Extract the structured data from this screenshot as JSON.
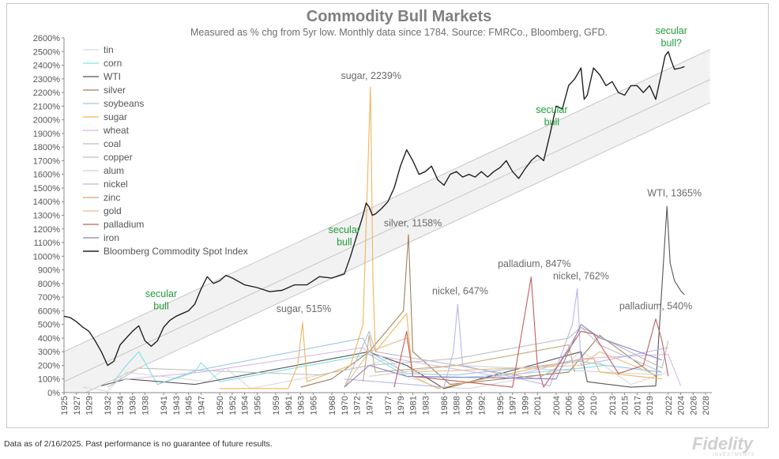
{
  "chart_data": {
    "type": "line",
    "title": "Commodity Bull Markets",
    "subtitle": "Measured as % chg from 5yr low.  Monthly data since 1784.  Source: FMRCo., Bloomberg, GFD.",
    "ylim": [
      0,
      2600
    ],
    "xlim": [
      1925,
      2029
    ],
    "y_ticks": [
      "0%",
      "100%",
      "200%",
      "300%",
      "400%",
      "500%",
      "600%",
      "700%",
      "800%",
      "900%",
      "1000%",
      "1100%",
      "1200%",
      "1300%",
      "1400%",
      "1500%",
      "1600%",
      "1700%",
      "1800%",
      "1900%",
      "2000%",
      "2100%",
      "2200%",
      "2300%",
      "2400%",
      "2500%",
      "2600%"
    ],
    "x_ticks": [
      "1925",
      "1927",
      "1929",
      "1932",
      "1934",
      "1936",
      "1938",
      "1941",
      "1943",
      "1945",
      "1947",
      "1950",
      "1952",
      "1954",
      "1956",
      "1959",
      "1961",
      "1963",
      "1965",
      "1968",
      "1970",
      "1972",
      "1974",
      "1977",
      "1979",
      "1981",
      "1983",
      "1986",
      "1988",
      "1990",
      "1992",
      "1995",
      "1997",
      "1999",
      "2001",
      "2004",
      "2006",
      "2008",
      "2010",
      "2013",
      "2015",
      "2017",
      "2019",
      "2022",
      "2024",
      "2026",
      "2028"
    ],
    "legend_position": "top-left",
    "grid": false,
    "series": [
      {
        "name": "tin",
        "color": "#d9d9d9",
        "x": [
          1928,
          1932,
          1935,
          1948,
          1951,
          1955,
          1974,
          1977,
          1980,
          1985,
          1990,
          2004,
          2008,
          2011,
          2016,
          2022
        ],
        "values": [
          40,
          10,
          150,
          80,
          180,
          30,
          200,
          250,
          120,
          40,
          30,
          150,
          300,
          220,
          60,
          150
        ]
      },
      {
        "name": "corn",
        "color": "#7ee0e8",
        "x": [
          1933,
          1935,
          1937,
          1940,
          1946,
          1947,
          1950,
          1974,
          1980,
          1988,
          1996,
          2008,
          2012,
          2021
        ],
        "values": [
          80,
          200,
          300,
          60,
          150,
          220,
          80,
          280,
          120,
          110,
          130,
          180,
          200,
          150
        ]
      },
      {
        "name": "WTI",
        "color": "#555555",
        "x": [
          1931,
          1935,
          1946,
          1974,
          1975,
          1980,
          1986,
          2000,
          2008,
          2009,
          2016,
          2020,
          2021.8,
          2022.3,
          2023,
          2024.1,
          2024.6
        ],
        "values": [
          50,
          100,
          60,
          300,
          280,
          200,
          30,
          200,
          300,
          80,
          40,
          50,
          1365,
          950,
          820,
          740,
          720
        ]
      },
      {
        "name": "silver",
        "color": "#a08060",
        "x": [
          1963,
          1968,
          1974,
          1979.5,
          1980.3,
          1981,
          1987,
          2006,
          2011,
          2020
        ],
        "values": [
          40,
          100,
          300,
          600,
          1158,
          300,
          60,
          150,
          420,
          120
        ]
      },
      {
        "name": "soybeans",
        "color": "#9cc7e6",
        "x": [
          1940,
          1946,
          1973,
          1974,
          1980,
          1988,
          2008,
          2012,
          2021
        ],
        "values": [
          60,
          160,
          400,
          300,
          140,
          130,
          230,
          200,
          150
        ]
      },
      {
        "name": "sugar",
        "color": "#f2b45c",
        "x": [
          1950,
          1961,
          1962.5,
          1963.3,
          1964,
          1971,
          1973,
          1974.2,
          1974.6,
          1975,
          1980,
          1981,
          1985,
          2006,
          2010,
          2011,
          2021
        ],
        "values": [
          30,
          30,
          200,
          515,
          80,
          200,
          500,
          2239,
          800,
          300,
          580,
          120,
          30,
          230,
          250,
          150,
          100
        ]
      },
      {
        "name": "wheat",
        "color": "#d8b8e8",
        "x": [
          1933,
          1947,
          1973,
          1974,
          1996,
          2008,
          2022,
          2024
        ],
        "values": [
          90,
          150,
          330,
          280,
          110,
          250,
          280,
          50
        ]
      },
      {
        "name": "coal",
        "color": "#bcbcbc",
        "x": [
          1970,
          1974,
          1975,
          2001,
          2004,
          2008,
          2021,
          2022
        ],
        "values": [
          40,
          450,
          300,
          100,
          180,
          480,
          180,
          380
        ]
      },
      {
        "name": "copper",
        "color": "#c0c0c0",
        "x": [
          1932,
          1937,
          1966,
          1974,
          1988,
          2006,
          2008,
          2011,
          2021
        ],
        "values": [
          40,
          180,
          130,
          200,
          250,
          400,
          480,
          350,
          150
        ]
      },
      {
        "name": "alum",
        "color": "#d0d0d0",
        "x": [
          1974,
          1988,
          2008,
          2021
        ],
        "values": [
          120,
          200,
          160,
          130
        ]
      },
      {
        "name": "nickel",
        "color": "#b7b7ea",
        "x": [
          1970,
          1986,
          1987.5,
          1988.2,
          1989,
          2003,
          2006.6,
          2007.4,
          2008,
          2022
        ],
        "values": [
          100,
          40,
          300,
          647,
          200,
          50,
          500,
          762,
          200,
          330
        ]
      },
      {
        "name": "zinc",
        "color": "#c9a77a",
        "x": [
          1973,
          1974,
          1975,
          1988,
          2006,
          2007
        ],
        "values": [
          80,
          420,
          150,
          200,
          350,
          150
        ]
      },
      {
        "name": "gold",
        "color": "#e8bd8c",
        "x": [
          1970,
          1974,
          1980,
          1981,
          2008,
          2011,
          2020
        ],
        "values": [
          40,
          300,
          400,
          150,
          200,
          300,
          130
        ]
      },
      {
        "name": "palladium",
        "color": "#c06060",
        "x": [
          1978,
          1980,
          1981,
          1997,
          2000,
          2001,
          2002,
          2008,
          2010,
          2014,
          2018,
          2020,
          2021,
          2022
        ],
        "values": [
          40,
          450,
          120,
          40,
          847,
          200,
          40,
          450,
          430,
          140,
          200,
          540,
          380,
          120
        ]
      },
      {
        "name": "iron",
        "color": "#8b7fc2",
        "x": [
          1970,
          1974,
          1980,
          2004,
          2008,
          2011,
          2021
        ],
        "values": [
          40,
          200,
          120,
          100,
          500,
          400,
          240
        ]
      },
      {
        "name": "Bloomberg Commodity Spot Index",
        "color": "#222222",
        "x": [
          1925,
          1926,
          1927,
          1928,
          1929,
          1930,
          1931,
          1932,
          1933,
          1934,
          1935,
          1936,
          1937,
          1938,
          1939,
          1940,
          1941,
          1942,
          1943,
          1944,
          1945,
          1946,
          1947,
          1948,
          1949,
          1950,
          1951,
          1952,
          1954,
          1956,
          1958,
          1960,
          1962,
          1964,
          1966,
          1968,
          1970,
          1971,
          1972,
          1973,
          1973.5,
          1974,
          1974.5,
          1975,
          1976,
          1977,
          1978,
          1979,
          1980,
          1981,
          1982,
          1983,
          1984,
          1985,
          1986,
          1987,
          1988,
          1989,
          1990,
          1991,
          1992,
          1993,
          1994,
          1995,
          1996,
          1997,
          1998,
          1999,
          2000,
          2001,
          2002,
          2003,
          2004,
          2005,
          2006,
          2007,
          2008,
          2008.5,
          2009,
          2010,
          2011,
          2012,
          2013,
          2014,
          2015,
          2016,
          2017,
          2018,
          2019,
          2020,
          2021,
          2021.5,
          2022,
          2022.5,
          2023,
          2024,
          2024.6
        ],
        "values": [
          560,
          550,
          520,
          480,
          450,
          380,
          300,
          200,
          230,
          350,
          400,
          450,
          490,
          380,
          340,
          380,
          480,
          530,
          560,
          580,
          600,
          650,
          760,
          850,
          800,
          820,
          860,
          840,
          790,
          770,
          740,
          750,
          790,
          790,
          850,
          840,
          870,
          1000,
          1150,
          1300,
          1390,
          1360,
          1300,
          1310,
          1350,
          1400,
          1500,
          1660,
          1780,
          1700,
          1600,
          1620,
          1660,
          1560,
          1520,
          1600,
          1620,
          1580,
          1600,
          1580,
          1620,
          1580,
          1620,
          1650,
          1700,
          1620,
          1570,
          1640,
          1700,
          1740,
          1700,
          1890,
          2100,
          2080,
          2250,
          2300,
          2380,
          2150,
          2180,
          2380,
          2330,
          2250,
          2280,
          2200,
          2180,
          2250,
          2250,
          2200,
          2250,
          2150,
          2360,
          2470,
          2500,
          2430,
          2370,
          2380,
          2390
        ]
      }
    ],
    "bands": [
      {
        "name": "upper",
        "start": [
          1925,
          300
        ],
        "end": [
          2028.7,
          2515
        ]
      },
      {
        "name": "middle",
        "start": [
          1925,
          80
        ],
        "end": [
          2028.7,
          2295
        ]
      },
      {
        "name": "lower",
        "start": [
          1928.5,
          0
        ],
        "end": [
          2028.7,
          2125
        ]
      }
    ],
    "annotations": [
      {
        "text": "sugar, 2239%",
        "x": 1974.3,
        "y": 2300,
        "style": "gray"
      },
      {
        "text": "silver, 1158%",
        "x": 1981,
        "y": 1220,
        "style": "gray"
      },
      {
        "text": "sugar, 515%",
        "x": 1963.5,
        "y": 590,
        "style": "gray"
      },
      {
        "text": "nickel, 647%",
        "x": 1988.6,
        "y": 720,
        "style": "gray"
      },
      {
        "text": "palladium, 847%",
        "x": 2000.5,
        "y": 920,
        "style": "gray"
      },
      {
        "text": "nickel, 762%",
        "x": 2008,
        "y": 830,
        "style": "gray"
      },
      {
        "text": "WTI, 1365%",
        "x": 2023,
        "y": 1440,
        "style": "gray"
      },
      {
        "text": "palladium, 540%",
        "x": 2020,
        "y": 610,
        "style": "gray"
      },
      {
        "text": "secular",
        "x": 1940.6,
        "y": 700,
        "style": "green"
      },
      {
        "text": "bull",
        "x": 1940.6,
        "y": 610,
        "style": "green"
      },
      {
        "text": "secular",
        "x": 1970,
        "y": 1170,
        "style": "green"
      },
      {
        "text": "bull",
        "x": 1970,
        "y": 1080,
        "style": "green"
      },
      {
        "text": "secular",
        "x": 2003.3,
        "y": 2050,
        "style": "green"
      },
      {
        "text": "bull",
        "x": 2003.3,
        "y": 1960,
        "style": "green"
      },
      {
        "text": "secular",
        "x": 2022.5,
        "y": 2630,
        "style": "green"
      },
      {
        "text": "bull?",
        "x": 2022.5,
        "y": 2540,
        "style": "green"
      }
    ]
  },
  "footer": {
    "disclaimer": "Data as of 2/16/2025. Past performance is no guarantee of future results."
  },
  "logo": {
    "text": "Fidelity",
    "sub": "INVESTMENTS"
  }
}
